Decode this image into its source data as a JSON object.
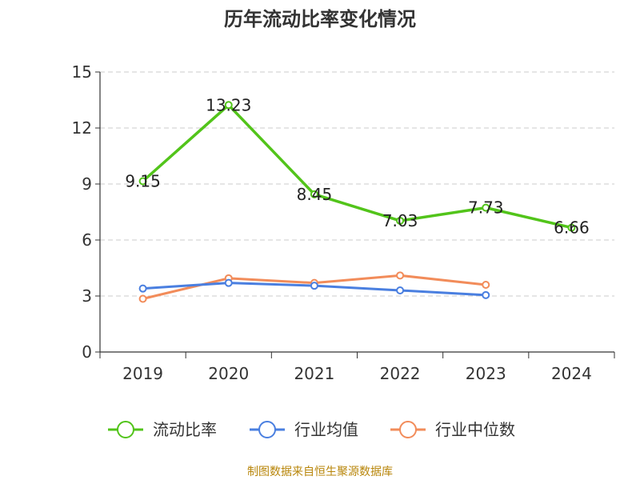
{
  "chart_data": {
    "type": "line",
    "title": "历年流动比率变化情况",
    "categories": [
      "2019",
      "2020",
      "2021",
      "2022",
      "2023",
      "2024"
    ],
    "ylim": [
      0,
      15
    ],
    "yticks": [
      0,
      3,
      6,
      9,
      12,
      15
    ],
    "grid": true,
    "legend_position": "bottom",
    "series": [
      {
        "name": "流动比率",
        "color": "#52c41a",
        "values": [
          9.15,
          13.23,
          8.45,
          7.03,
          7.73,
          6.66
        ],
        "labels": [
          "9.15",
          "13.23",
          "8.45",
          "7.03",
          "7.73",
          "6.66"
        ]
      },
      {
        "name": "行业均值",
        "color": "#4a7fe0",
        "values": [
          3.4,
          3.7,
          3.55,
          3.3,
          3.05,
          null
        ]
      },
      {
        "name": "行业中位数",
        "color": "#f28c5a",
        "values": [
          2.85,
          3.95,
          3.7,
          4.1,
          3.6,
          null
        ]
      }
    ]
  },
  "footer": {
    "source": "制图数据来自恒生聚源数据库"
  }
}
